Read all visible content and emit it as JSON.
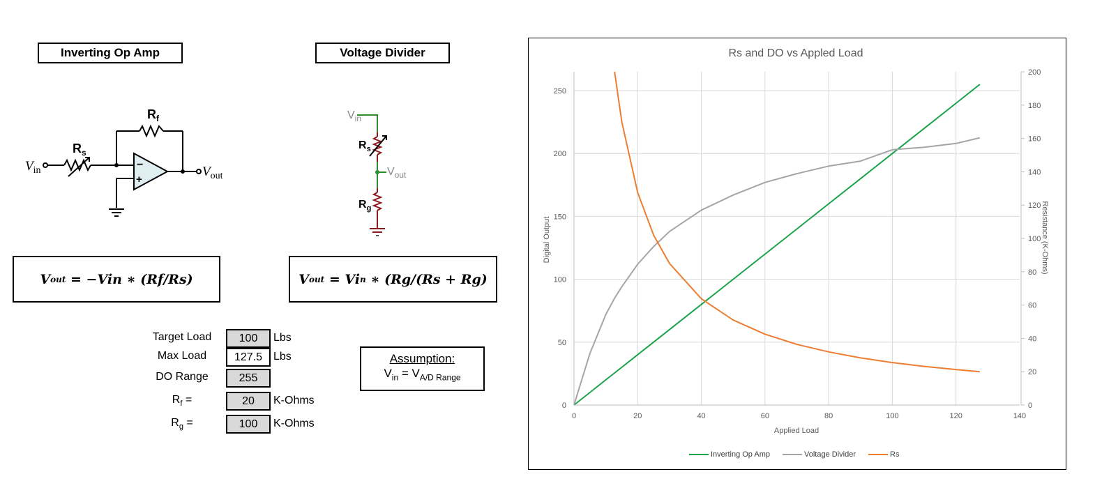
{
  "left_panel": {
    "opamp": {
      "title": "Inverting Op Amp",
      "labels": {
        "vin": "V",
        "vin_sub": "in",
        "vout": "V",
        "vout_sub": "out",
        "rs": "R",
        "rs_sub": "s",
        "rf": "R",
        "rf_sub": "f",
        "minus": "−",
        "plus": "+"
      },
      "formula": {
        "lhs": "V",
        "lhs_sub": "out",
        "rhs": " = −Vin ∗ (Rf/Rs)"
      }
    },
    "divider": {
      "title": "Voltage Divider",
      "labels": {
        "vin": "V",
        "vin_sub": "in",
        "vout": "V",
        "vout_sub": "out",
        "rs": "R",
        "rs_sub": "s",
        "rg": "R",
        "rg_sub": "g"
      },
      "formula": {
        "lhs": "V",
        "lhs_sub": "out",
        "mid": " = Vi",
        "mid_sub": "n",
        "rhs": " ∗ (Rg/(Rs + Rg)"
      }
    },
    "params": [
      {
        "label": "Target Load",
        "label_sub": "",
        "label_suffix": "",
        "value": "100",
        "unit": "Lbs",
        "shaded": true
      },
      {
        "label": "Max Load",
        "label_sub": "",
        "label_suffix": "",
        "value": "127.5",
        "unit": "Lbs",
        "shaded": false
      },
      {
        "label": "DO Range",
        "label_sub": "",
        "label_suffix": "",
        "value": "255",
        "unit": "",
        "shaded": true
      },
      {
        "label": "R",
        "label_sub": "f",
        "label_suffix": " =",
        "value": "20",
        "unit": "K-Ohms",
        "shaded": true
      },
      {
        "label": "R",
        "label_sub": "g",
        "label_suffix": " =",
        "value": "100",
        "unit": "K-Ohms",
        "shaded": true
      }
    ],
    "assumption": {
      "heading": "Assumption:",
      "v1": "V",
      "v1_sub": "in",
      "eq": " = ",
      "v2": "V",
      "v2_sub": "A/D Range"
    }
  },
  "colors": {
    "opamp_line": "#1aa34a",
    "divider_line": "#a5a5a5",
    "rs_line": "#ed7d31",
    "grid": "#d9d9d9",
    "axis_text": "#595959",
    "shaded_cell": "#d9d9d9",
    "divider_wire_green": "#2e8b2e",
    "divider_wire_red": "#8b1a1a",
    "opamp_fill": "#dfeef0"
  },
  "chart_data": {
    "type": "line",
    "title": "Rs and DO vs Appled Load",
    "xlabel": "Applied Load",
    "ylabel": "Digital Output",
    "y2label": "Resistance (K-Ohms)",
    "xlim": [
      0,
      140
    ],
    "ylim": [
      0,
      265
    ],
    "y2lim": [
      0,
      200
    ],
    "x_ticks": [
      0,
      20,
      40,
      60,
      80,
      100,
      120,
      140
    ],
    "y_ticks": [
      0,
      50,
      100,
      150,
      200,
      250
    ],
    "y2_ticks": [
      0,
      20,
      40,
      60,
      80,
      100,
      120,
      140,
      160,
      180,
      200
    ],
    "grid": true,
    "legend_position": "bottom",
    "x": [
      0,
      5,
      10,
      12.75,
      15,
      20,
      25,
      30,
      40,
      50,
      60,
      70,
      80,
      90,
      100,
      110,
      120,
      127.5
    ],
    "series": [
      {
        "name": "Inverting Op Amp",
        "axis": "left",
        "color": "#1aa34a",
        "values": [
          0,
          10,
          20,
          25.5,
          30,
          40,
          50,
          60,
          80,
          100,
          120,
          140,
          160,
          180,
          200,
          220,
          240,
          255
        ]
      },
      {
        "name": "Voltage Divider",
        "axis": "left",
        "color": "#a5a5a5",
        "values": [
          0,
          41,
          72,
          85,
          94,
          112,
          126,
          138,
          155,
          167,
          177,
          184,
          190,
          194,
          203,
          205,
          208,
          212.5
        ]
      },
      {
        "name": "Rs",
        "axis": "right",
        "color": "#ed7d31",
        "values": [
          null,
          null,
          null,
          200,
          170,
          127.5,
          102,
          85,
          63.75,
          51,
          42.5,
          36.4,
          31.9,
          28.3,
          25.5,
          23.2,
          21.3,
          20
        ]
      }
    ]
  }
}
